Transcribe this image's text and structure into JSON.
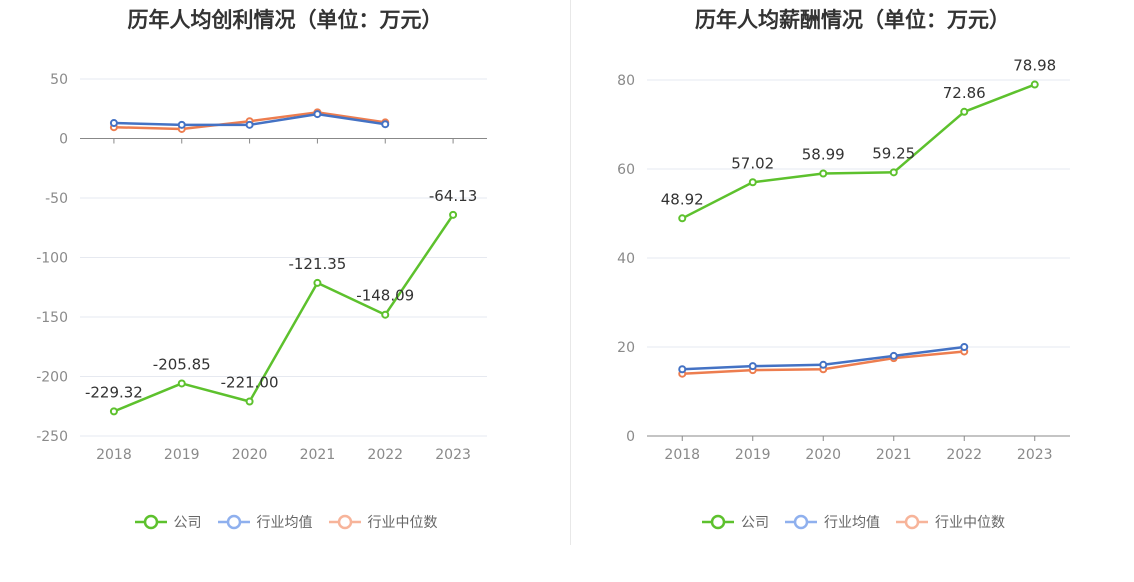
{
  "colors": {
    "company": "#5dc12d",
    "industry_avg": "#4472c4",
    "industry_median": "#ed7d4f",
    "legend_avg": "#8fb0ee",
    "legend_median": "#f7b49a",
    "grid": "#e6e9f0",
    "axis": "#888888"
  },
  "legend": {
    "company": "公司",
    "industry_avg": "行业均值",
    "industry_median": "行业中位数"
  },
  "chart_data": [
    {
      "type": "line",
      "title": "历年人均创利情况（单位：万元）",
      "categories": [
        "2018",
        "2019",
        "2020",
        "2021",
        "2022",
        "2023"
      ],
      "ylim": [
        -250,
        50
      ],
      "yticks": [
        50,
        0,
        -50,
        -100,
        -150,
        -200,
        -250
      ],
      "series": [
        {
          "name": "公司",
          "key": "company",
          "values": [
            -229.32,
            -205.85,
            -221.0,
            -121.35,
            -148.09,
            -64.13
          ],
          "labels": [
            "-229.32",
            "-205.85",
            "-221.00",
            "-121.35",
            "-148.09",
            "-64.13"
          ]
        },
        {
          "name": "行业均值",
          "key": "industry_avg",
          "values": [
            13,
            11.5,
            11.5,
            20.5,
            12,
            null
          ]
        },
        {
          "name": "行业中位数",
          "key": "industry_median",
          "values": [
            9.5,
            8,
            14.5,
            22,
            13.5,
            null
          ]
        }
      ]
    },
    {
      "type": "line",
      "title": "历年人均薪酬情况（单位：万元）",
      "categories": [
        "2018",
        "2019",
        "2020",
        "2021",
        "2022",
        "2023"
      ],
      "ylim": [
        0,
        80
      ],
      "yticks": [
        80,
        60,
        40,
        20,
        0
      ],
      "series": [
        {
          "name": "公司",
          "key": "company",
          "values": [
            48.92,
            57.02,
            58.99,
            59.25,
            72.86,
            78.98
          ],
          "labels": [
            "48.92",
            "57.02",
            "58.99",
            "59.25",
            "72.86",
            "78.98"
          ]
        },
        {
          "name": "行业均值",
          "key": "industry_avg",
          "values": [
            15,
            15.7,
            16,
            18,
            20,
            null
          ]
        },
        {
          "name": "行业中位数",
          "key": "industry_median",
          "values": [
            14,
            14.8,
            15,
            17.5,
            19,
            null
          ]
        }
      ]
    }
  ]
}
